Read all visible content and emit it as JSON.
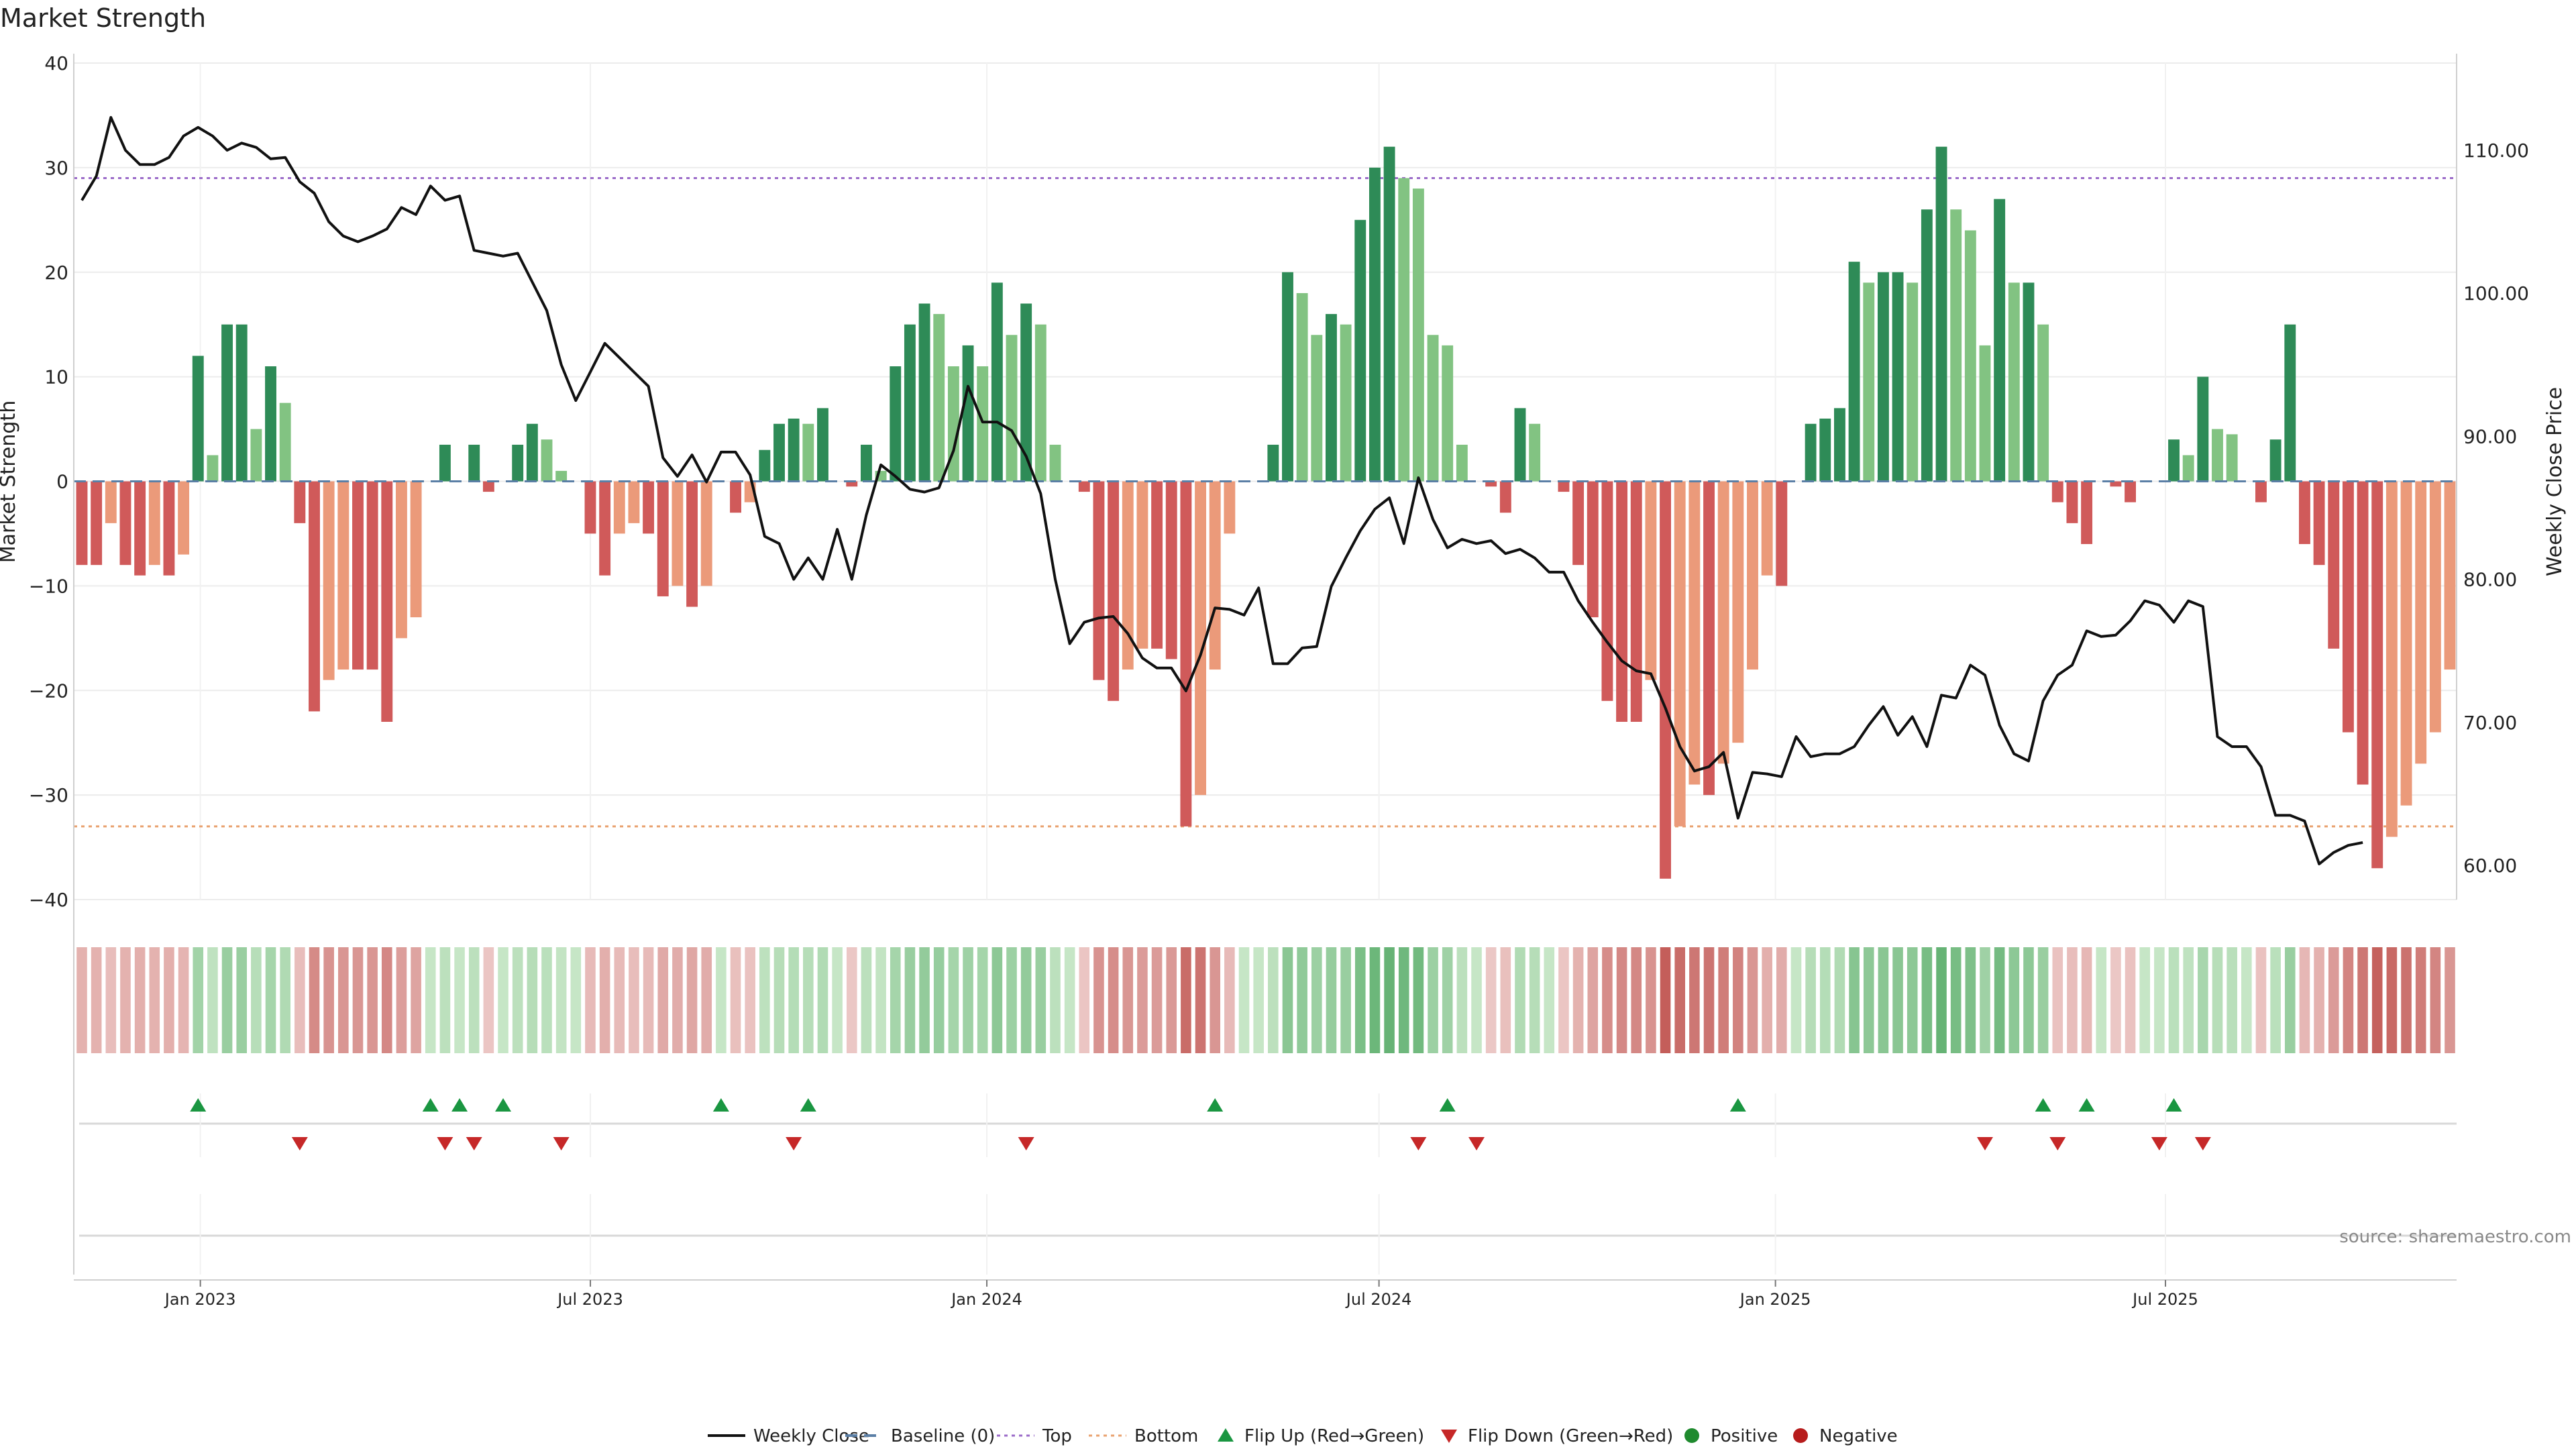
{
  "chart_data": {
    "type": "bar",
    "title": "Market Strength",
    "ylabel_left": "Market Strength",
    "ylabel_right": "Weekly Close Price",
    "source": "source: sharemaestro.com",
    "ylim_left": [
      -40,
      40
    ],
    "ylim_right": [
      55,
      115
    ],
    "yticks_left": [
      40,
      30,
      20,
      10,
      0,
      -10,
      -20,
      -30,
      -40
    ],
    "yticks_left_labels": [
      "40",
      "30",
      "20",
      "10",
      "0",
      "−10",
      "−20",
      "−30",
      "−40"
    ],
    "yticks_right": [
      110,
      100,
      90,
      80,
      70,
      60
    ],
    "yticks_right_labels": [
      "110.00",
      "100.00",
      "90.00",
      "80.00",
      "70.00",
      "60.00"
    ],
    "x_range": [
      "2022-11-07",
      "2025-11-10"
    ],
    "xticks": [
      {
        "date": "2023-01-01",
        "label": "Jan 2023"
      },
      {
        "date": "2023-07-01",
        "label": "Jul 2023"
      },
      {
        "date": "2024-01-01",
        "label": "Jan 2024"
      },
      {
        "date": "2024-07-01",
        "label": "Jul 2024"
      },
      {
        "date": "2025-01-01",
        "label": "Jan 2025"
      },
      {
        "date": "2025-07-01",
        "label": "Jul 2025"
      }
    ],
    "top_level": 29,
    "bottom_level": -33,
    "strength": [
      -8,
      -8,
      -4,
      -8,
      -9,
      -8,
      -9,
      -7,
      12,
      2.5,
      15,
      15,
      5,
      11,
      7.5,
      -4,
      -22,
      -19,
      -18,
      -18,
      -18,
      -23,
      -15,
      -13,
      0,
      3.5,
      0,
      3.5,
      -1,
      0,
      3.5,
      5.5,
      4,
      1,
      0,
      -5,
      -9,
      -5,
      -4,
      -5,
      -11,
      -10,
      -12,
      -10,
      0,
      -3,
      -2,
      3,
      5.5,
      6,
      5.5,
      7,
      0,
      -0.5,
      3.5,
      1,
      11,
      15,
      17,
      16,
      11,
      13,
      11,
      19,
      14,
      17,
      15,
      3.5,
      0,
      -1,
      -19,
      -21,
      -18,
      -16,
      -16,
      -17,
      -33,
      -30,
      -18,
      -5,
      0,
      0,
      3.5,
      20,
      18,
      14,
      16,
      15,
      25,
      30,
      32,
      29,
      28,
      14,
      13,
      3.5,
      0,
      -0.5,
      -3,
      7,
      5.5,
      0,
      -1,
      -8,
      -13,
      -21,
      -23,
      -23,
      -19,
      -38,
      -33,
      -29,
      -30,
      -27,
      -25,
      -18,
      -9,
      -10,
      0,
      5.5,
      6,
      7,
      21,
      19,
      20,
      20,
      19,
      26,
      32,
      26,
      24,
      13,
      27,
      19,
      19,
      15,
      -2,
      -4,
      -6,
      0,
      -0.5,
      -2,
      0,
      0,
      4,
      2.5,
      10,
      5,
      4.5,
      0,
      -2,
      4,
      15,
      -6,
      -8,
      -16,
      -24,
      -29,
      -37,
      -34,
      -31,
      -27,
      -24,
      -18
    ],
    "weekly_close": [
      106.5,
      108.2,
      112.3,
      110.0,
      109.0,
      109.0,
      109.5,
      111.0,
      111.6,
      111.0,
      110.0,
      110.5,
      110.2,
      109.4,
      109.5,
      107.8,
      107.0,
      105.0,
      104.0,
      103.6,
      104.0,
      104.5,
      106.0,
      105.5,
      107.5,
      106.5,
      106.8,
      103.0,
      102.8,
      102.6,
      102.8,
      100.8,
      98.8,
      95.0,
      92.5,
      94.5,
      96.5,
      95.5,
      94.5,
      93.5,
      88.5,
      87.2,
      88.7,
      86.8,
      88.9,
      88.9,
      87.3,
      83.0,
      82.5,
      80.0,
      81.5,
      80.0,
      83.5,
      80.0,
      84.5,
      88.0,
      87.2,
      86.3,
      86.1,
      86.4,
      89.0,
      93.5,
      91.0,
      91.0,
      90.4,
      88.6,
      86.0,
      80.0,
      75.5,
      77.0,
      77.3,
      77.4,
      76.2,
      74.5,
      73.8,
      73.8,
      72.2,
      74.7,
      78.0,
      77.9,
      77.5,
      79.4,
      74.1,
      74.1,
      75.2,
      75.3,
      79.5,
      81.5,
      83.4,
      84.9,
      85.7,
      82.5,
      87.1,
      84.2,
      82.2,
      82.8,
      82.5,
      82.7,
      81.8,
      82.1,
      81.5,
      80.5,
      80.5,
      78.5,
      77.0,
      75.6,
      74.3,
      73.6,
      73.4,
      71.0,
      68.3,
      66.6,
      66.9,
      67.9,
      63.3,
      66.5,
      66.4,
      66.2,
      69.0,
      67.6,
      67.8,
      67.8,
      68.3,
      69.8,
      71.1,
      69.1,
      70.4,
      68.3,
      71.9,
      71.7,
      74.0,
      73.3,
      69.8,
      67.8,
      67.3,
      71.5,
      73.3,
      74.0,
      76.4,
      76.0,
      76.1,
      77.1,
      78.5,
      78.2,
      77.0,
      78.5,
      78.1,
      69.0,
      68.3,
      68.3,
      66.9,
      63.5,
      63.5,
      63.1,
      60.1,
      60.9,
      61.4,
      61.6
    ],
    "flip_up_weeks": [
      8,
      24,
      26,
      29,
      44,
      50,
      78,
      94,
      114,
      135,
      138,
      144
    ],
    "flip_down_weeks": [
      15,
      25,
      27,
      33,
      49,
      65,
      92,
      96,
      131,
      136,
      143,
      146
    ],
    "legend": [
      {
        "label": "Weekly Close",
        "marker": "line-solid",
        "color": "#111111"
      },
      {
        "label": "Baseline (0)",
        "marker": "line-dashed",
        "color": "#5b7fa6"
      },
      {
        "label": "Top",
        "marker": "line-dotted",
        "color": "#9b6bc9"
      },
      {
        "label": "Bottom",
        "marker": "line-dotted",
        "color": "#e9a26f"
      },
      {
        "label": "Flip Up (Red→Green)",
        "marker": "triangle-up",
        "color": "#1a9641"
      },
      {
        "label": "Flip Down (Green→Red)",
        "marker": "triangle-down",
        "color": "#c62828"
      },
      {
        "label": "Positive",
        "marker": "circle",
        "color": "#1f8a2e"
      },
      {
        "label": "Negative",
        "marker": "circle",
        "color": "#b71c1c"
      }
    ],
    "colors": {
      "positive_strong": "#2e8b57",
      "positive_weak": "#82c382",
      "negative_strong": "#d05a5a",
      "negative_weak": "#eb9a7a",
      "top_line": "#9b6bc9",
      "bottom_line": "#e9a26f",
      "baseline": "#5b7fa6",
      "price_line": "#111111"
    }
  }
}
